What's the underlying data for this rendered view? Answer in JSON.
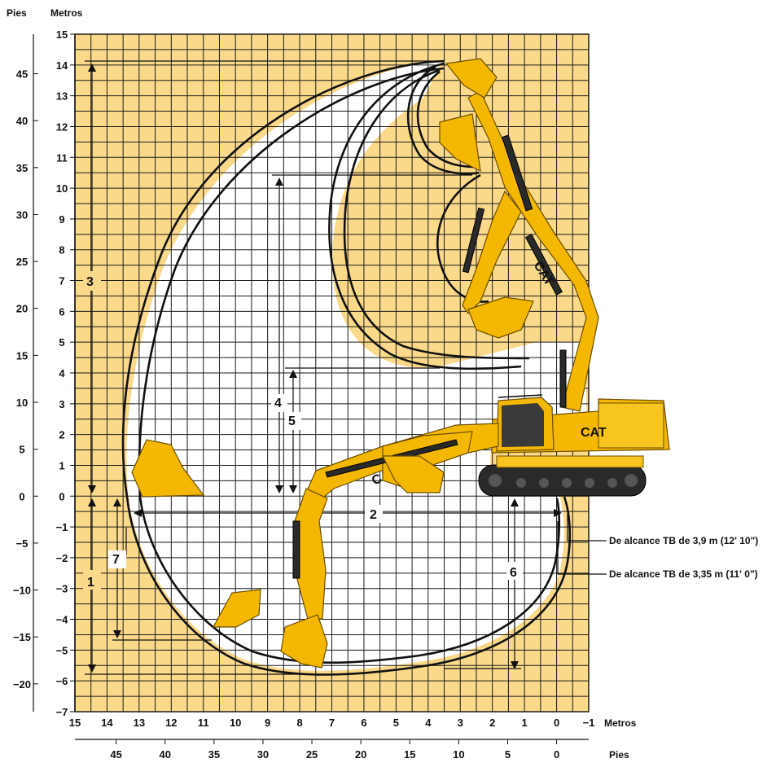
{
  "axes": {
    "left_feet_title": "Pies",
    "left_meters_title": "Metros",
    "bottom_meters_title": "Metros",
    "bottom_feet_title": "Pies",
    "y_meters_ticks": [
      "15",
      "14",
      "13",
      "12",
      "11",
      "10",
      "9",
      "8",
      "7",
      "6",
      "5",
      "4",
      "3",
      "2",
      "1",
      "0",
      "−1",
      "−2",
      "−3",
      "−4",
      "−5",
      "−6",
      "−7"
    ],
    "y_feet_ticks": [
      "45",
      "40",
      "35",
      "30",
      "25",
      "20",
      "15",
      "10",
      "5",
      "0",
      "−5",
      "−10",
      "−15",
      "−20"
    ],
    "x_meters_ticks": [
      "15",
      "14",
      "13",
      "12",
      "11",
      "10",
      "9",
      "8",
      "7",
      "6",
      "5",
      "4",
      "3",
      "2",
      "1",
      "0",
      "−1"
    ],
    "x_feet_ticks": [
      "45",
      "40",
      "35",
      "30",
      "25",
      "20",
      "15",
      "10",
      "5",
      "0"
    ]
  },
  "callouts": [
    "1",
    "2",
    "3",
    "4",
    "5",
    "6",
    "7"
  ],
  "legend": {
    "outer": "De alcance TB de 3,9 m (12' 10\")",
    "inner": "De alcance TB de 3,35 m (11' 0\")"
  },
  "brand_text": "CAT",
  "colors": {
    "background": "#fbd98a",
    "machine": "#f5b800",
    "grid": "#1a1a1a"
  }
}
